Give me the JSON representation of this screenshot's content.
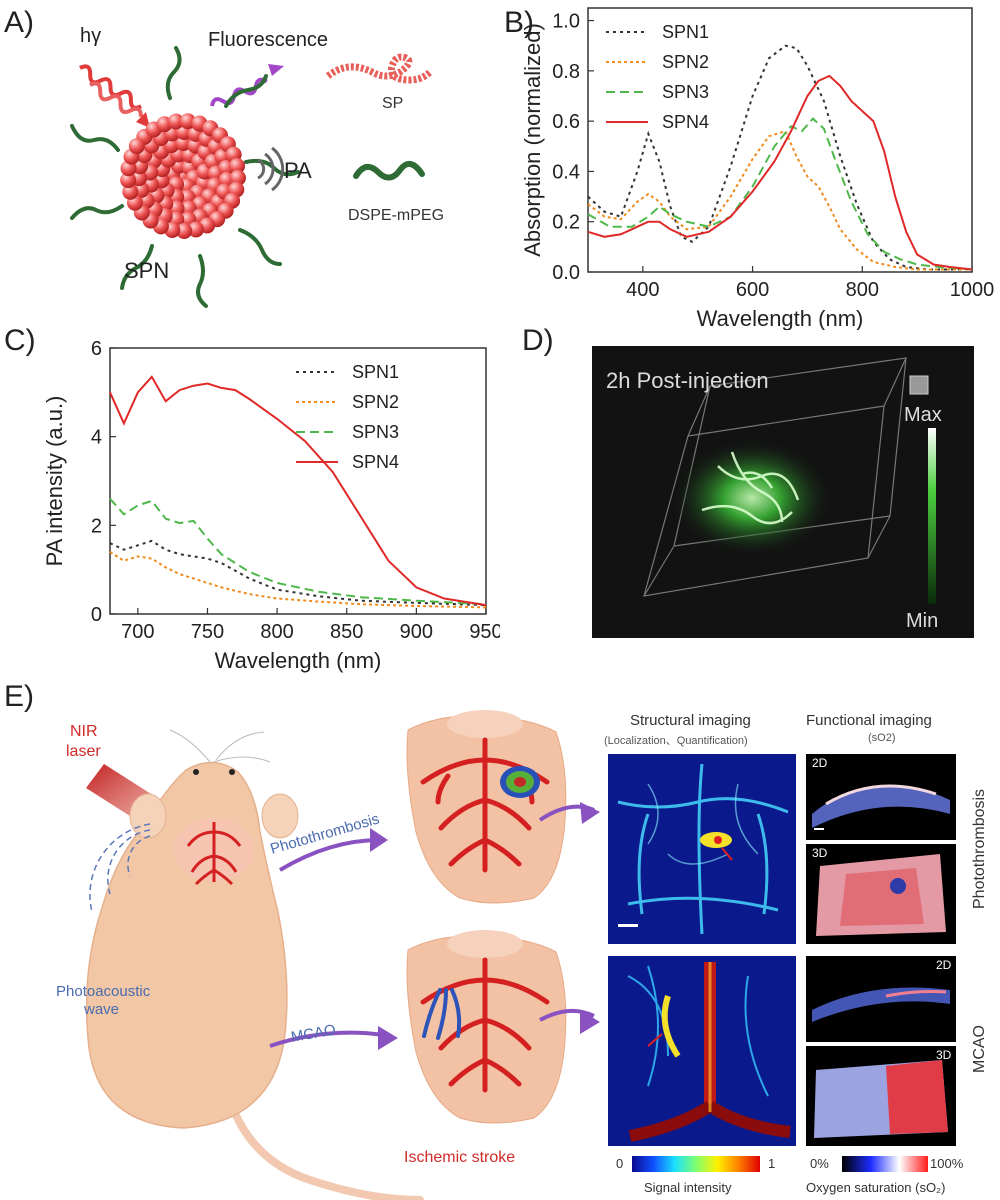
{
  "panels": {
    "a": "A)",
    "b": "B)",
    "c": "C)",
    "d": "D)",
    "e": "E)"
  },
  "panel_a": {
    "hv": "hγ",
    "fluorescence": "Fluorescence",
    "pa": "PA",
    "sp": "SP",
    "dspe": "DSPE-mPEG",
    "spn": "SPN",
    "colors": {
      "core": "#e84a4a",
      "chain": "#2e6b35",
      "light_in": "#e03a3a",
      "light_out": "#a347c9"
    }
  },
  "panel_d": {
    "title": "2h Post-injection",
    "max": "Max",
    "min": "Min"
  },
  "panel_e": {
    "nir": "NIR",
    "laser": "laser",
    "photothrombosis": "Photothrombosis",
    "mcao": "MCAO",
    "photoacoustic": "Photoacoustic",
    "wave": "wave",
    "ischemic": "Ischemic stroke",
    "structural": "Structural imaging",
    "structural_sub": "(Localization、Quantification)",
    "functional": "Functional imaging",
    "functional_sub": "(sO2)",
    "label_2d": "2D",
    "label_3d": "3D",
    "side_top": "Photothrombosis",
    "side_bottom": "MCAO",
    "signal_min": "0",
    "signal_max": "1",
    "signal_label": "Signal intensity",
    "sat_min": "0%",
    "sat_max": "100%",
    "sat_label": "Oxygen saturation (sO₂)"
  },
  "chart_data": [
    {
      "id": "B",
      "type": "line",
      "xlabel": "Wavelength (nm)",
      "ylabel": "Absorption (normalized)",
      "xlim": [
        300,
        1000
      ],
      "ylim": [
        0,
        1.05
      ],
      "xticks": [
        400,
        600,
        800,
        1000
      ],
      "yticks": [
        0.0,
        0.2,
        0.4,
        0.6,
        0.8,
        1.0
      ],
      "ytick_labels": [
        "0.0",
        "0.2",
        "0.4",
        "0.6",
        "0.8",
        "1.0"
      ],
      "legend_position": "top-left",
      "series": [
        {
          "name": "SPN1",
          "color": "#333333",
          "dash": "3,4",
          "x": [
            300,
            330,
            360,
            390,
            410,
            430,
            450,
            470,
            490,
            520,
            560,
            600,
            630,
            660,
            680,
            700,
            730,
            760,
            790,
            820,
            850,
            880,
            920,
            960,
            1000
          ],
          "y": [
            0.3,
            0.24,
            0.22,
            0.4,
            0.55,
            0.44,
            0.26,
            0.14,
            0.12,
            0.18,
            0.42,
            0.7,
            0.85,
            0.9,
            0.89,
            0.82,
            0.68,
            0.46,
            0.27,
            0.12,
            0.05,
            0.02,
            0.01,
            0.01,
            0.01
          ]
        },
        {
          "name": "SPN2",
          "color": "#f08c1e",
          "dash": "3,3",
          "x": [
            300,
            330,
            360,
            390,
            410,
            430,
            450,
            480,
            520,
            560,
            600,
            630,
            660,
            680,
            700,
            720,
            740,
            760,
            790,
            820,
            860,
            900,
            950,
            1000
          ],
          "y": [
            0.27,
            0.22,
            0.21,
            0.28,
            0.31,
            0.28,
            0.22,
            0.17,
            0.18,
            0.3,
            0.45,
            0.54,
            0.56,
            0.46,
            0.38,
            0.34,
            0.26,
            0.17,
            0.09,
            0.04,
            0.02,
            0.01,
            0.01,
            0.01
          ]
        },
        {
          "name": "SPN3",
          "color": "#4fb84a",
          "dash": "9,5",
          "x": [
            300,
            340,
            380,
            410,
            430,
            450,
            480,
            520,
            560,
            600,
            640,
            670,
            690,
            710,
            730,
            750,
            780,
            810,
            840,
            870,
            900,
            940,
            1000
          ],
          "y": [
            0.23,
            0.18,
            0.18,
            0.22,
            0.26,
            0.23,
            0.2,
            0.18,
            0.22,
            0.34,
            0.5,
            0.58,
            0.56,
            0.61,
            0.57,
            0.45,
            0.28,
            0.15,
            0.08,
            0.05,
            0.03,
            0.02,
            0.01
          ]
        },
        {
          "name": "SPN4",
          "color": "#e02828",
          "dash": "",
          "x": [
            300,
            330,
            360,
            390,
            410,
            430,
            450,
            480,
            520,
            560,
            600,
            640,
            670,
            700,
            720,
            740,
            760,
            780,
            800,
            820,
            840,
            860,
            880,
            900,
            930,
            960,
            1000
          ],
          "y": [
            0.16,
            0.14,
            0.15,
            0.18,
            0.2,
            0.2,
            0.17,
            0.14,
            0.16,
            0.22,
            0.32,
            0.44,
            0.56,
            0.7,
            0.76,
            0.78,
            0.74,
            0.68,
            0.64,
            0.6,
            0.48,
            0.3,
            0.16,
            0.07,
            0.03,
            0.02,
            0.01
          ]
        }
      ]
    },
    {
      "id": "C",
      "type": "line",
      "xlabel": "Wavelength (nm)",
      "ylabel": "PA intensity (a.u.)",
      "xlim": [
        680,
        950
      ],
      "ylim": [
        0,
        6
      ],
      "xticks": [
        700,
        750,
        800,
        850,
        900,
        950
      ],
      "yticks": [
        0,
        2,
        4,
        6
      ],
      "ytick_labels": [
        "0",
        "2",
        "4",
        "6"
      ],
      "legend_position": "top-right",
      "series": [
        {
          "name": "SPN1",
          "color": "#333333",
          "dash": "3,4",
          "x": [
            680,
            690,
            700,
            710,
            720,
            730,
            740,
            750,
            760,
            780,
            800,
            830,
            860,
            900,
            950
          ],
          "y": [
            1.6,
            1.45,
            1.55,
            1.65,
            1.45,
            1.35,
            1.3,
            1.25,
            1.15,
            0.8,
            0.55,
            0.4,
            0.3,
            0.25,
            0.2
          ]
        },
        {
          "name": "SPN2",
          "color": "#f08c1e",
          "dash": "3,3",
          "x": [
            680,
            690,
            700,
            710,
            720,
            730,
            740,
            760,
            780,
            800,
            830,
            860,
            900,
            950
          ],
          "y": [
            1.4,
            1.2,
            1.3,
            1.25,
            1.05,
            0.9,
            0.8,
            0.6,
            0.45,
            0.35,
            0.28,
            0.22,
            0.18,
            0.15
          ]
        },
        {
          "name": "SPN3",
          "color": "#4fb84a",
          "dash": "9,5",
          "x": [
            680,
            690,
            700,
            710,
            720,
            730,
            740,
            750,
            760,
            780,
            800,
            830,
            860,
            900,
            950
          ],
          "y": [
            2.6,
            2.25,
            2.45,
            2.55,
            2.15,
            2.05,
            2.1,
            1.7,
            1.35,
            0.95,
            0.7,
            0.5,
            0.38,
            0.3,
            0.22
          ]
        },
        {
          "name": "SPN4",
          "color": "#e02828",
          "dash": "",
          "x": [
            680,
            690,
            700,
            710,
            720,
            730,
            740,
            750,
            760,
            770,
            780,
            800,
            820,
            840,
            860,
            880,
            900,
            920,
            950
          ],
          "y": [
            5.0,
            4.3,
            5.0,
            5.35,
            4.8,
            5.05,
            5.15,
            5.2,
            5.1,
            5.05,
            4.85,
            4.4,
            3.9,
            3.2,
            2.2,
            1.2,
            0.6,
            0.35,
            0.2
          ]
        }
      ]
    }
  ]
}
